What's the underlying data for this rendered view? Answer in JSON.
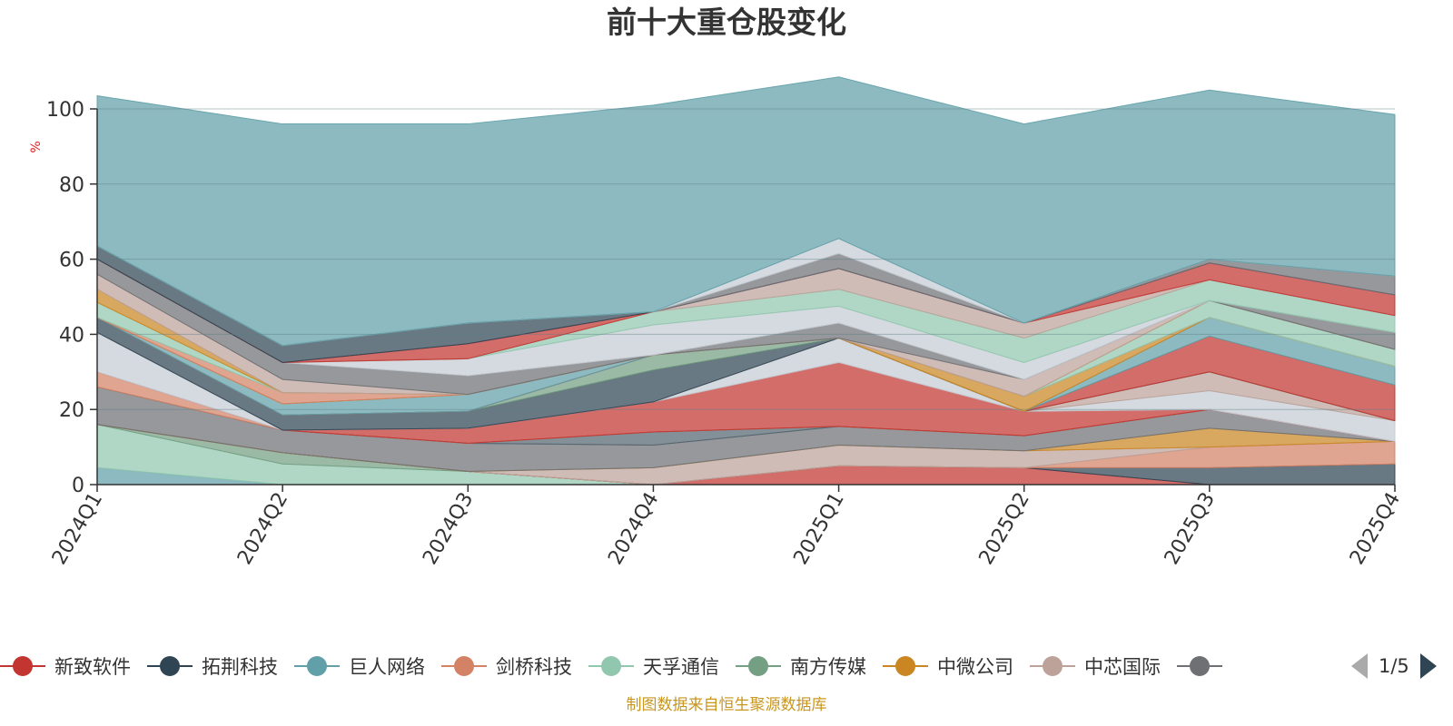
{
  "title": "前十大重仓股变化",
  "y_unit": "%",
  "source": "制图数据来自恒生聚源数据库",
  "legend_page": "1/5",
  "legend_items": [
    {
      "label": "新致软件",
      "color": "#c23531"
    },
    {
      "label": "拓荆科技",
      "color": "#2f4554"
    },
    {
      "label": "巨人网络",
      "color": "#61a0a8"
    },
    {
      "label": "剑桥科技",
      "color": "#d48265"
    },
    {
      "label": "天孚通信",
      "color": "#91c7ae"
    },
    {
      "label": "南方传媒",
      "color": "#749f83"
    },
    {
      "label": "中微公司",
      "color": "#ca8622"
    },
    {
      "label": "中芯国际",
      "color": "#bda29a"
    },
    {
      "label": "",
      "color": "#6e7074"
    }
  ],
  "chart_data": {
    "type": "area",
    "stacked": true,
    "title": "前十大重仓股变化",
    "ylabel": "%",
    "ylim": [
      0,
      100
    ],
    "yticks": [
      0,
      20,
      40,
      60,
      80,
      100
    ],
    "grid": true,
    "legend_position": "bottom",
    "categories": [
      "2024Q1",
      "2024Q2",
      "2024Q3",
      "2024Q4",
      "2025Q1",
      "2025Q2",
      "2025Q3",
      "2025Q4"
    ],
    "series": [
      {
        "name": "",
        "color": "#61a0a8",
        "values": [
          4.5,
          0,
          0,
          0,
          0,
          0,
          0,
          0
        ]
      },
      {
        "name": "",
        "color": "#91c7ae",
        "values": [
          11.5,
          5.5,
          3.5,
          0,
          0,
          0,
          0,
          0
        ]
      },
      {
        "name": "",
        "color": "#749f83",
        "values": [
          0,
          3,
          0,
          0,
          0,
          0,
          0,
          0
        ]
      },
      {
        "name": "新致软件",
        "color": "#c23531",
        "values": [
          0,
          0,
          0,
          0,
          5,
          4.5,
          0,
          0
        ]
      },
      {
        "name": "拓荆科技",
        "color": "#2f4554",
        "values": [
          0,
          0,
          0,
          0,
          0,
          0,
          4.5,
          5.5
        ]
      },
      {
        "name": "",
        "color": "#d48265",
        "values": [
          0,
          0,
          0,
          0,
          0,
          0,
          5.5,
          6
        ]
      },
      {
        "name": "",
        "color": "#bda29a",
        "values": [
          0,
          0,
          0,
          4.5,
          5.5,
          4.5,
          0,
          0
        ]
      },
      {
        "name": "",
        "color": "#ca8622",
        "values": [
          0,
          0,
          0,
          0,
          0,
          0,
          5,
          0
        ]
      },
      {
        "name": "",
        "color": "#6e7074",
        "values": [
          10,
          6,
          7.5,
          6,
          5,
          4,
          5,
          0
        ]
      },
      {
        "name": "",
        "color": "#546570",
        "values": [
          0,
          0,
          0,
          3.5,
          0,
          0,
          0,
          0
        ]
      },
      {
        "name": "",
        "color": "#d48265",
        "values": [
          4,
          0,
          0,
          0,
          0,
          0,
          0,
          0
        ]
      },
      {
        "name": "",
        "color": "#c23531",
        "values": [
          0,
          0,
          4,
          8,
          17,
          6.5,
          0,
          0
        ]
      },
      {
        "name": "",
        "color": "#c4ccd3",
        "values": [
          10.5,
          0,
          0,
          0,
          6.5,
          0,
          5,
          5.5
        ]
      },
      {
        "name": "",
        "color": "#bda29a",
        "values": [
          0,
          0,
          0,
          0,
          0,
          0,
          5,
          0
        ]
      },
      {
        "name": "",
        "color": "#2f4554",
        "values": [
          4,
          4,
          4.5,
          8.5,
          0,
          0,
          0,
          0
        ]
      },
      {
        "name": "",
        "color": "#749f83",
        "values": [
          0,
          0,
          0,
          4,
          0,
          0,
          0,
          0
        ]
      },
      {
        "name": "",
        "color": "#c23531",
        "values": [
          0,
          0,
          0,
          0,
          0,
          0,
          9.5,
          9.5
        ]
      },
      {
        "name": "",
        "color": "#61a0a8",
        "values": [
          0,
          3,
          4.5,
          0,
          0,
          0,
          5,
          5
        ]
      },
      {
        "name": "",
        "color": "#ca8622",
        "values": [
          0,
          0,
          0,
          0,
          0,
          4,
          0,
          0
        ]
      },
      {
        "name": "",
        "color": "#d48265",
        "values": [
          0,
          3,
          0,
          0,
          0,
          0,
          0,
          0
        ]
      },
      {
        "name": "",
        "color": "#91c7ae",
        "values": [
          4,
          0,
          0,
          0,
          0,
          0,
          4.5,
          4.5
        ]
      },
      {
        "name": "",
        "color": "#ca8622",
        "values": [
          3.5,
          0,
          0,
          0,
          0,
          0,
          0,
          0
        ]
      },
      {
        "name": "",
        "color": "#bda29a",
        "values": [
          4,
          3.5,
          0,
          0,
          0,
          4.5,
          0,
          0
        ]
      },
      {
        "name": "",
        "color": "#6e7074",
        "values": [
          4,
          4.5,
          5,
          0,
          4,
          0,
          0,
          4.5
        ]
      },
      {
        "name": "",
        "color": "#c4ccd3",
        "values": [
          0,
          0,
          4.5,
          8,
          4.5,
          4.5,
          0,
          0
        ]
      },
      {
        "name": "",
        "color": "#91c7ae",
        "values": [
          0,
          0,
          0,
          3.5,
          4.5,
          6.5,
          5.5,
          4.5
        ]
      },
      {
        "name": "",
        "color": "#bda29a",
        "values": [
          0,
          0,
          0,
          0,
          5.5,
          4,
          0,
          0
        ]
      },
      {
        "name": "",
        "color": "#c23531",
        "values": [
          0,
          0,
          4,
          0,
          0,
          0,
          4.5,
          5.5
        ]
      },
      {
        "name": "",
        "color": "#2f4554",
        "values": [
          3.5,
          4.5,
          5.5,
          0,
          0,
          0,
          0,
          0
        ]
      },
      {
        "name": "",
        "color": "#6e7074",
        "values": [
          0,
          0,
          0,
          0,
          4,
          0,
          1,
          5
        ]
      },
      {
        "name": "",
        "color": "#c4ccd3",
        "values": [
          0,
          0,
          0,
          0,
          4,
          0,
          0,
          0
        ]
      },
      {
        "name": "",
        "color": "#61a0a8",
        "values": [
          40,
          59,
          53,
          55,
          43,
          53,
          45,
          43
        ]
      }
    ]
  }
}
